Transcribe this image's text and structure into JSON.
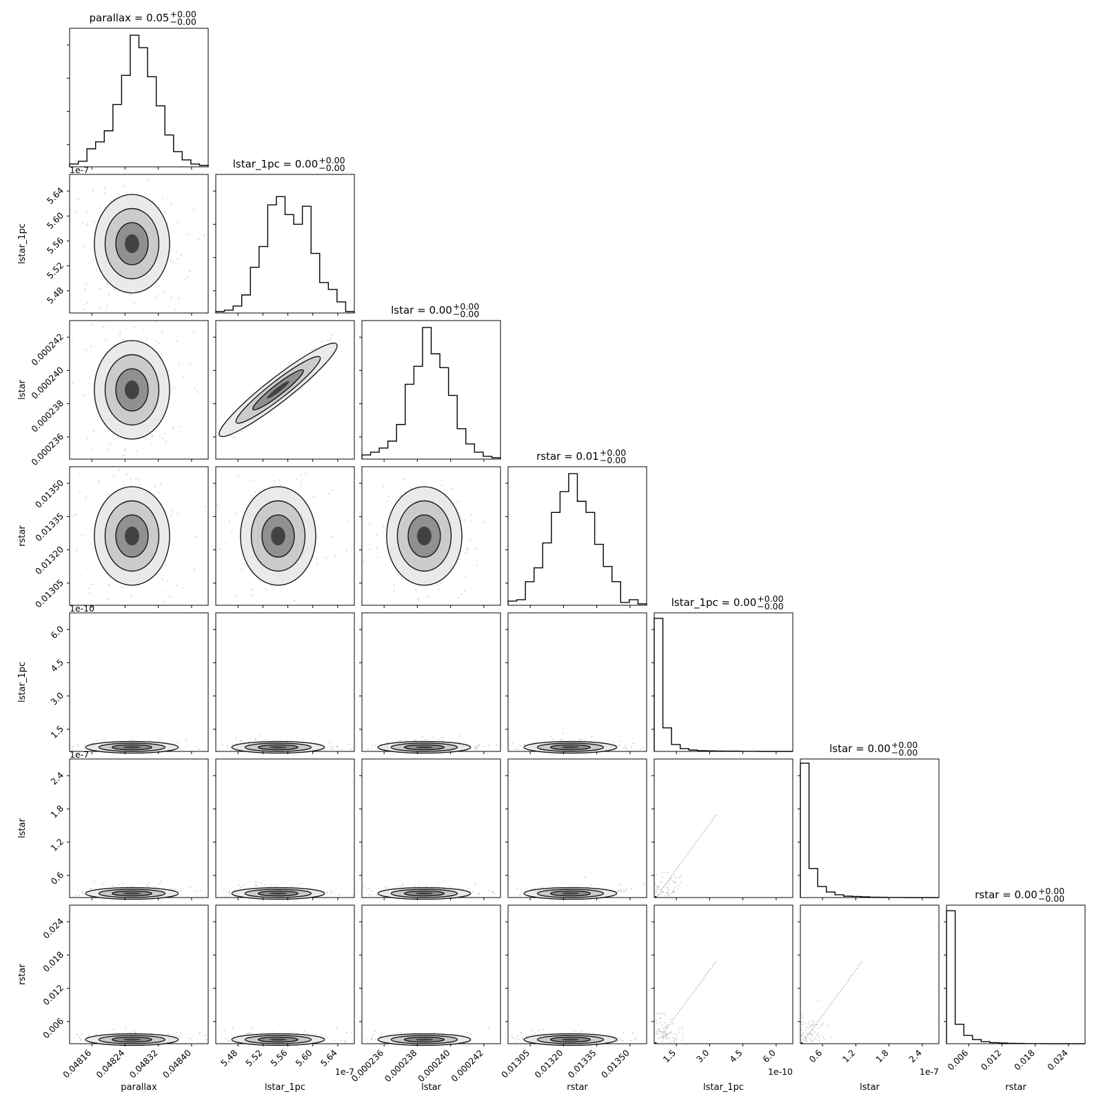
{
  "chart_data": {
    "type": "corner",
    "parameters": [
      "parallax",
      "lstar_1pc",
      "lstar",
      "rstar",
      "lstar_1pc",
      "lstar",
      "rstar"
    ],
    "diagonal_titles": [
      {
        "name": "parallax",
        "value": "0.05",
        "plus": "+0.00",
        "minus": "−0.00"
      },
      {
        "name": "lstar_1pc",
        "value": "0.00",
        "plus": "+0.00",
        "minus": "−0.00"
      },
      {
        "name": "lstar",
        "value": "0.00",
        "plus": "+0.00",
        "minus": "−0.00"
      },
      {
        "name": "rstar",
        "value": "0.01",
        "plus": "+0.00",
        "minus": "−0.00"
      },
      {
        "name": "lstar_1pc",
        "value": "0.00",
        "plus": "+0.00",
        "minus": "−0.00"
      },
      {
        "name": "lstar",
        "value": "0.00",
        "plus": "+0.00",
        "minus": "−0.00"
      },
      {
        "name": "rstar",
        "value": "0.00",
        "plus": "+0.00",
        "minus": "−0.00"
      }
    ],
    "x_axis_labels": [
      "parallax",
      "lstar_1pc",
      "lstar",
      "rstar",
      "lstar_1pc",
      "lstar",
      "rstar"
    ],
    "y_axis_labels": [
      "",
      "lstar_1pc",
      "lstar",
      "rstar",
      "lstar_1pc",
      "lstar",
      "rstar"
    ],
    "x_ticks": [
      [
        "0.04816",
        "0.04824",
        "0.04832",
        "0.04840"
      ],
      [
        "5.48",
        "5.52",
        "5.56",
        "5.60",
        "5.64"
      ],
      [
        "0.000236",
        "0.000238",
        "0.000240",
        "0.000242"
      ],
      [
        "0.01305",
        "0.01320",
        "0.01335",
        "0.01350"
      ],
      [
        "1.5",
        "3.0",
        "4.5",
        "6.0"
      ],
      [
        "0.6",
        "1.2",
        "1.8",
        "2.4"
      ],
      [
        "0.006",
        "0.012",
        "0.018",
        "0.024"
      ]
    ],
    "y_ticks": [
      [],
      [
        "5.48",
        "5.52",
        "5.56",
        "5.60",
        "5.64"
      ],
      [
        "0.000236",
        "0.000238",
        "0.000240",
        "0.000242"
      ],
      [
        "0.01305",
        "0.01320",
        "0.01335",
        "0.01350"
      ],
      [
        "1.5",
        "3.0",
        "4.5",
        "6.0"
      ],
      [
        "0.6",
        "1.2",
        "1.8",
        "2.4"
      ],
      [
        "0.006",
        "0.012",
        "0.018",
        "0.024"
      ]
    ],
    "axis_offsets": [
      "",
      "1e-7",
      "",
      "",
      "1e-10",
      "1e-7",
      ""
    ],
    "histograms": [
      [
        0.02,
        0.04,
        0.13,
        0.18,
        0.26,
        0.45,
        0.66,
        0.95,
        0.86,
        0.65,
        0.44,
        0.23,
        0.11,
        0.05,
        0.02,
        0.01
      ],
      [
        0.01,
        0.02,
        0.05,
        0.13,
        0.33,
        0.48,
        0.78,
        0.84,
        0.71,
        0.64,
        0.77,
        0.43,
        0.22,
        0.17,
        0.08,
        0.01
      ],
      [
        0.03,
        0.05,
        0.08,
        0.13,
        0.25,
        0.54,
        0.67,
        0.95,
        0.76,
        0.66,
        0.46,
        0.22,
        0.11,
        0.05,
        0.02,
        0.01
      ],
      [
        0.03,
        0.04,
        0.17,
        0.27,
        0.45,
        0.67,
        0.82,
        0.95,
        0.75,
        0.67,
        0.44,
        0.28,
        0.17,
        0.02,
        0.04,
        0.01
      ],
      [
        0.96,
        0.17,
        0.05,
        0.02,
        0.01,
        0.005,
        0.004,
        0.003,
        0.002,
        0.002,
        0.001,
        0.001,
        0,
        0,
        0,
        0
      ],
      [
        0.97,
        0.21,
        0.08,
        0.04,
        0.02,
        0.01,
        0.008,
        0.005,
        0.003,
        0.002,
        0.001,
        0.001,
        0,
        0,
        0,
        0
      ],
      [
        0.96,
        0.14,
        0.06,
        0.03,
        0.015,
        0.008,
        0.005,
        0.003,
        0.002,
        0.001,
        0.001,
        0,
        0,
        0,
        0,
        0
      ]
    ]
  }
}
